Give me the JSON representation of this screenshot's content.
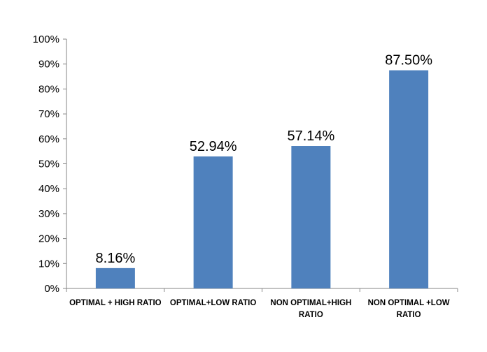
{
  "chart_data": {
    "type": "bar",
    "title": "",
    "xlabel": "",
    "ylabel": "",
    "categories": [
      [
        "OPTIMAL + HIGH RATIO"
      ],
      [
        "OPTIMAL+LOW RATIO"
      ],
      [
        "NON OPTIMAL+HIGH",
        "RATIO"
      ],
      [
        "NON OPTIMAL +LOW",
        "RATIO"
      ]
    ],
    "values": [
      8.16,
      52.94,
      57.14,
      87.5
    ],
    "data_labels": [
      "8.16%",
      "52.94%",
      "57.14%",
      "87.50%"
    ],
    "ylim": [
      0,
      100
    ],
    "y_ticks": [
      0,
      10,
      20,
      30,
      40,
      50,
      60,
      70,
      80,
      90,
      100
    ],
    "y_tick_labels": [
      "0%",
      "10%",
      "20%",
      "30%",
      "40%",
      "50%",
      "60%",
      "70%",
      "80%",
      "90%",
      "100%"
    ],
    "grid": false,
    "legend": "none",
    "colors": {
      "bar": "#4f81bd",
      "axis": "#868686",
      "text": "#000000"
    }
  }
}
